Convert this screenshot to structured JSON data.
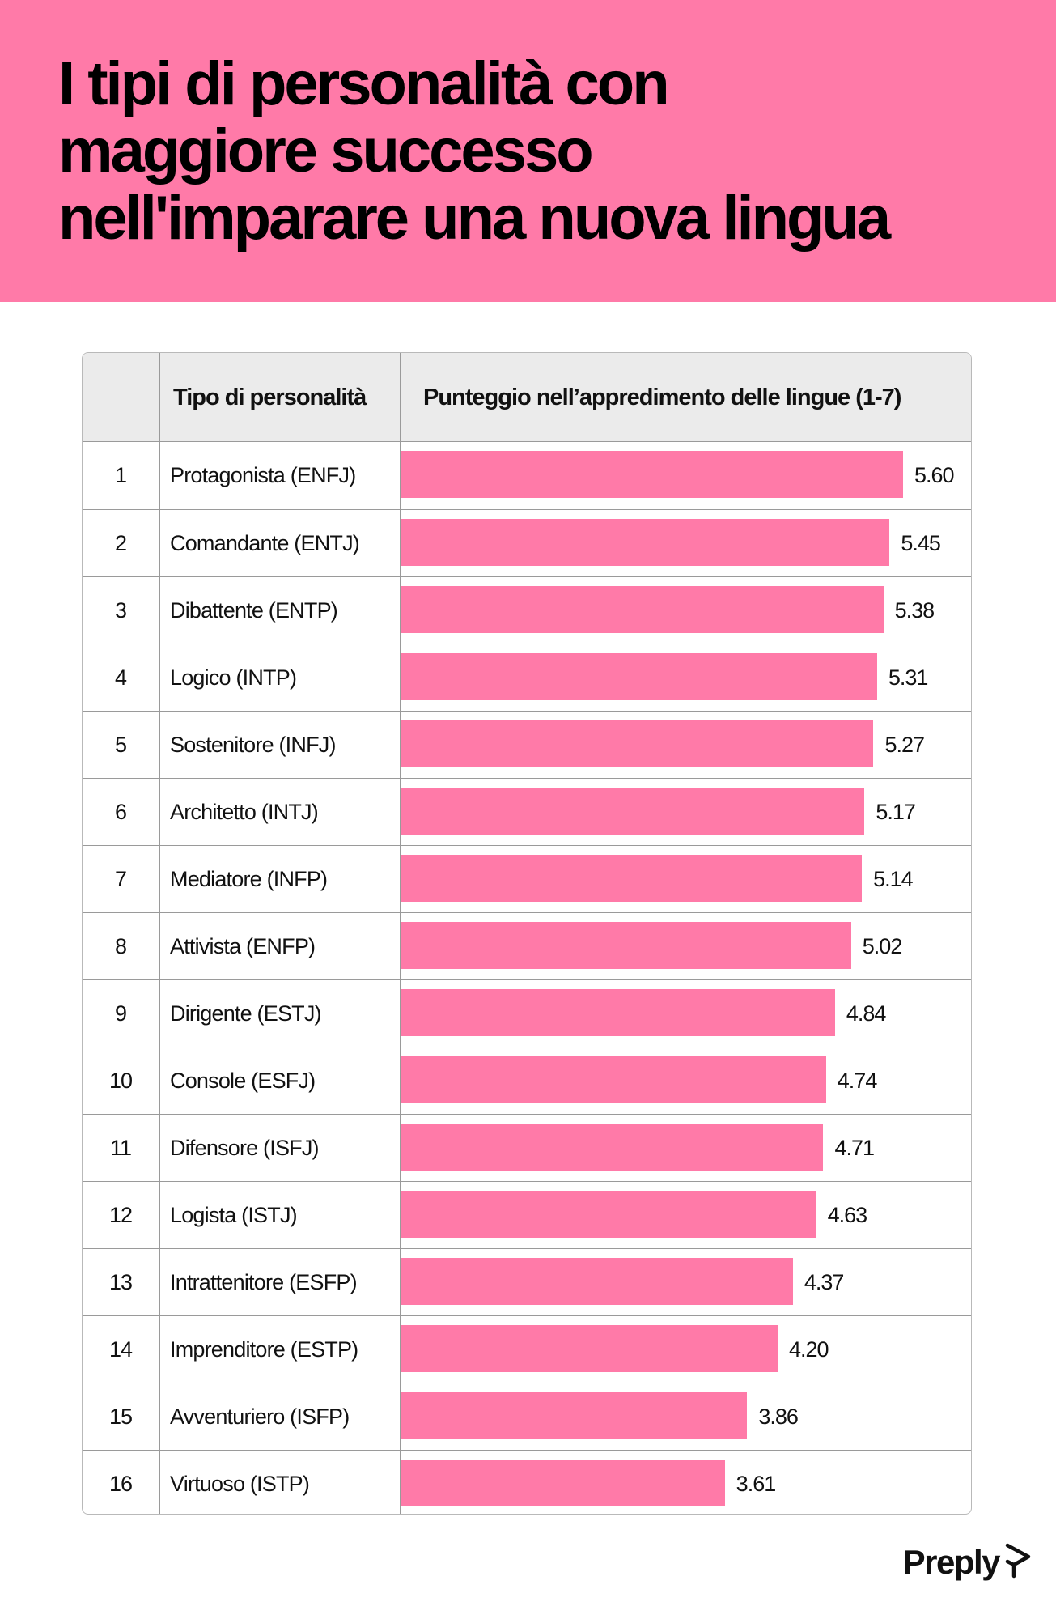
{
  "title_lines": [
    "I tipi di personalità con",
    "maggiore successo",
    "nell'imparare una nuova lingua"
  ],
  "table": {
    "col_rank_header": "",
    "col_type_header": "Tipo di personalità",
    "col_score_header": "Punteggio nell’appredimento delle lingue (1-7)"
  },
  "chart_data": {
    "type": "bar",
    "orientation": "horizontal",
    "ylabel": "Punteggio nell’appredimento delle lingue (1-7)",
    "xlim": [
      0,
      7
    ],
    "categories": [
      "Protagonista (ENFJ)",
      "Comandante (ENTJ)",
      "Dibattente (ENTP)",
      "Logico (INTP)",
      "Sostenitore (INFJ)",
      "Architetto (INTJ)",
      "Mediatore (INFP)",
      "Attivista (ENFP)",
      "Dirigente (ESTJ)",
      "Console (ESFJ)",
      "Difensore (ISFJ)",
      "Logista (ISTJ)",
      "Intrattenitore (ESFP)",
      "Imprenditore (ESTP)",
      "Avventuriero (ISFP)",
      "Virtuoso (ISTP)"
    ],
    "ranks": [
      "1",
      "2",
      "3",
      "4",
      "5",
      "6",
      "7",
      "8",
      "9",
      "10",
      "11",
      "12",
      "13",
      "14",
      "15",
      "16"
    ],
    "values": [
      5.6,
      5.45,
      5.38,
      5.31,
      5.27,
      5.17,
      5.14,
      5.02,
      4.84,
      4.74,
      4.71,
      4.63,
      4.37,
      4.2,
      3.86,
      3.61
    ],
    "value_labels": [
      "5.60",
      "5.45",
      "5.38",
      "5.31",
      "5.27",
      "5.17",
      "5.14",
      "5.02",
      "4.84",
      "4.74",
      "4.71",
      "4.63",
      "4.37",
      "4.20",
      "3.86",
      "3.61"
    ],
    "bar_color": "#ff7aa8"
  },
  "colors": {
    "header_bg": "#ff7aa8",
    "bar": "#ff7aa8",
    "table_header_bg": "#ebebeb"
  },
  "logo": {
    "text": "Preply",
    "icon": "preply-logo-icon"
  }
}
